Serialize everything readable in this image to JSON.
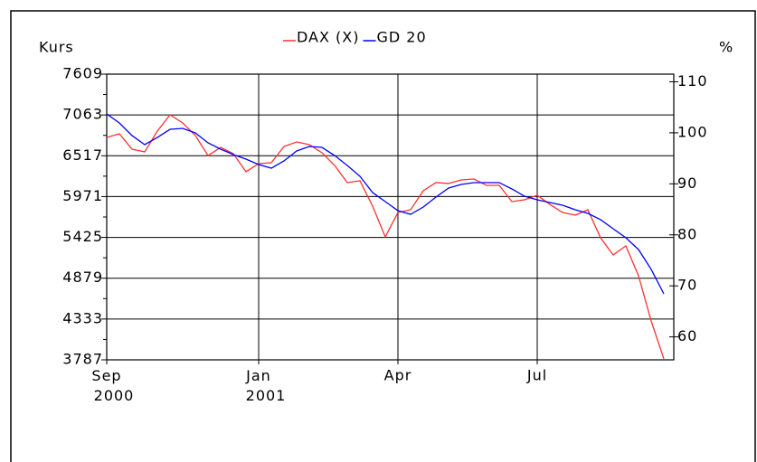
{
  "chart_data": {
    "type": "line",
    "y_label": "Kurs",
    "y2_label": "%",
    "categories": [
      "Sep 2000",
      null,
      null,
      null,
      null,
      null,
      null,
      null,
      null,
      null,
      null,
      null,
      "Jan 2001",
      null,
      null,
      null,
      null,
      null,
      null,
      null,
      null,
      null,
      null,
      "Apr",
      null,
      null,
      null,
      null,
      null,
      null,
      null,
      null,
      null,
      null,
      "Jul",
      null,
      null,
      null,
      null,
      null,
      null,
      null,
      null,
      null,
      null
    ],
    "series": [
      {
        "name": "DAX (X)",
        "color": "#ff3030",
        "values": [
          6762,
          6811,
          6605,
          6569,
          6847,
          7065,
          6956,
          6787,
          6520,
          6629,
          6545,
          6303,
          6412,
          6424,
          6641,
          6702,
          6666,
          6557,
          6387,
          6158,
          6182,
          5843,
          5432,
          5758,
          5795,
          6049,
          6158,
          6146,
          6194,
          6206,
          6121,
          6121,
          5904,
          5928,
          5988,
          5867,
          5758,
          5722,
          5795,
          5420,
          5190,
          5311,
          4912,
          4307,
          3800
        ]
      },
      {
        "name": "GD 20",
        "color": "#0000ff",
        "values": [
          7077,
          6956,
          6787,
          6666,
          6762,
          6871,
          6883,
          6823,
          6690,
          6605,
          6533,
          6472,
          6400,
          6351,
          6448,
          6581,
          6641,
          6629,
          6520,
          6387,
          6242,
          6025,
          5904,
          5783,
          5734,
          5831,
          5964,
          6085,
          6133,
          6158,
          6158,
          6158,
          6073,
          5976,
          5928,
          5892,
          5855,
          5795,
          5746,
          5662,
          5541,
          5420,
          5263,
          4997,
          4670
        ]
      }
    ],
    "ylim": [
      3787,
      7609
    ],
    "yticks": [
      3787,
      4333,
      4879,
      5425,
      5971,
      6517,
      7063,
      7609
    ],
    "y2lim": [
      55.5,
      111.5
    ],
    "y2ticks": [
      60,
      70,
      80,
      90,
      100,
      110
    ],
    "grid": true
  }
}
